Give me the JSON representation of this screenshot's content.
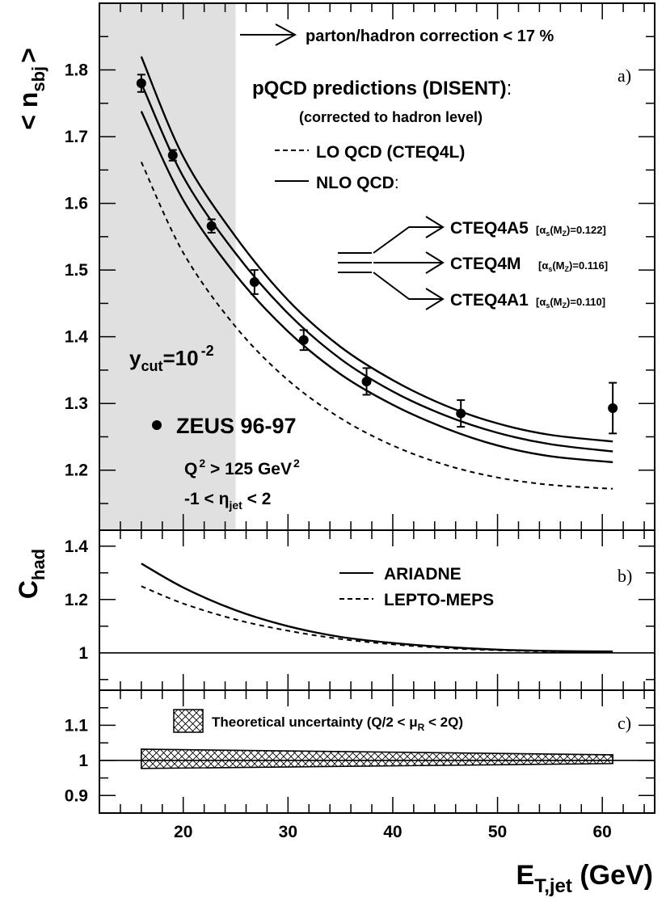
{
  "chart_data": [
    {
      "panel": "a",
      "type": "scatter",
      "tag": "a)",
      "ylabel": "< n",
      "ylabel_sub": "sbj",
      "ylabel_close": ">",
      "xlim": [
        12,
        65
      ],
      "ylim": [
        1.11,
        1.9
      ],
      "yticks": [
        1.2,
        1.3,
        1.4,
        1.5,
        1.6,
        1.7,
        1.8
      ],
      "ytick_labels": [
        "1.2",
        "1.3",
        "1.4",
        "1.5",
        "1.6",
        "1.7",
        "1.8"
      ],
      "shaded_region": {
        "x": [
          12,
          25
        ]
      },
      "series": [
        {
          "name": "ZEUS 96-97",
          "kind": "points",
          "x": [
            16,
            19,
            22.7,
            26.8,
            31.5,
            37.5,
            46.5,
            61
          ],
          "y": [
            1.78,
            1.672,
            1.566,
            1.482,
            1.395,
            1.333,
            1.285,
            1.293
          ],
          "yerr": [
            0.013,
            0.008,
            0.01,
            0.018,
            0.015,
            0.02,
            0.02,
            0.038
          ]
        },
        {
          "name": "CTEQ4A5",
          "kind": "line",
          "dash": "solid",
          "x": [
            16,
            20,
            25,
            30,
            35,
            40,
            45,
            50,
            55,
            61
          ],
          "y": [
            1.82,
            1.67,
            1.55,
            1.455,
            1.385,
            1.335,
            1.297,
            1.27,
            1.253,
            1.243
          ]
        },
        {
          "name": "CTEQ4M",
          "kind": "line",
          "dash": "solid",
          "x": [
            16,
            20,
            25,
            30,
            35,
            40,
            45,
            50,
            55,
            61
          ],
          "y": [
            1.78,
            1.64,
            1.525,
            1.435,
            1.367,
            1.318,
            1.282,
            1.256,
            1.239,
            1.228
          ]
        },
        {
          "name": "CTEQ4A1",
          "kind": "line",
          "dash": "solid",
          "x": [
            16,
            20,
            25,
            30,
            35,
            40,
            45,
            50,
            55,
            61
          ],
          "y": [
            1.738,
            1.605,
            1.493,
            1.408,
            1.344,
            1.298,
            1.263,
            1.237,
            1.221,
            1.212
          ]
        },
        {
          "name": "LO QCD (CTEQ4L)",
          "kind": "line",
          "dash": "dashed",
          "x": [
            16,
            20,
            25,
            30,
            35,
            40,
            45,
            50,
            55,
            61
          ],
          "y": [
            1.662,
            1.526,
            1.415,
            1.335,
            1.278,
            1.237,
            1.208,
            1.189,
            1.178,
            1.172
          ]
        }
      ],
      "annotations": {
        "correction": "parton/hadron correction < 17 %",
        "pqcd_title": "pQCD predictions (DISENT)",
        "pqcd_colon": ":",
        "pqcd_sub": "(corrected to hadron level)",
        "lo_label": "LO QCD (CTEQ4L)",
        "nlo_label": "NLO QCD",
        "nlo_colon": ":",
        "pdfs": [
          {
            "name": "CTEQ4A5",
            "value": "=0.122]"
          },
          {
            "name": "CTEQ4M",
            "value": "=0.116]"
          },
          {
            "name": "CTEQ4A1",
            "value": "=0.110]"
          }
        ],
        "alpha_open": "[α",
        "alpha_s": "s",
        "alpha_m": "(M",
        "alpha_z": "Z",
        "alpha_close": ")",
        "ycut_y": "y",
        "ycut_sub": "cut",
        "ycut_eq": "=10",
        "ycut_exp": "-2",
        "zeus_label": "ZEUS 96-97",
        "q2_q": "Q",
        "q2_exp": "2",
        "q2_gt": " > 125 GeV",
        "q2_exp2": "2",
        "eta_pre": "-1 < η",
        "eta_sub": "jet",
        "eta_post": " < 2"
      }
    },
    {
      "panel": "b",
      "type": "line",
      "tag": "b)",
      "ylabel": "C",
      "ylabel_sub": "had",
      "xlim": [
        12,
        65
      ],
      "ylim": [
        0.86,
        1.46
      ],
      "yticks": [
        1.0,
        1.2,
        1.4
      ],
      "ytick_labels": [
        "1",
        "1.2",
        "1.4"
      ],
      "reference_line": 1.0,
      "series": [
        {
          "name": "ARIADNE",
          "dash": "solid",
          "x": [
            16,
            20,
            25,
            30,
            35,
            40,
            45,
            50,
            55,
            61
          ],
          "y": [
            1.335,
            1.245,
            1.16,
            1.1,
            1.06,
            1.037,
            1.022,
            1.012,
            1.007,
            1.005
          ]
        },
        {
          "name": "LEPTO-MEPS",
          "dash": "dashed",
          "x": [
            16,
            20,
            25,
            30,
            35,
            40,
            45,
            50,
            55,
            61
          ],
          "y": [
            1.25,
            1.185,
            1.125,
            1.083,
            1.052,
            1.032,
            1.018,
            1.01,
            1.005,
            1.002
          ]
        }
      ]
    },
    {
      "panel": "c",
      "type": "area",
      "tag": "c)",
      "xlim": [
        12,
        65
      ],
      "ylim": [
        0.85,
        1.2
      ],
      "yticks": [
        0.9,
        1.0,
        1.1
      ],
      "ytick_labels": [
        "0.9",
        "1",
        "1.1"
      ],
      "reference_line": 1.0,
      "band": {
        "x": [
          16,
          61
        ],
        "upper": [
          1.032,
          1.016
        ],
        "lower": [
          0.977,
          0.991
        ]
      },
      "legend_text": "Theoretical uncertainty (Q/2 < μ",
      "legend_sub": "R",
      "legend_post": " < 2Q)",
      "xticks": [
        20,
        30,
        40,
        50,
        60
      ],
      "xtick_labels": [
        "20",
        "30",
        "40",
        "50",
        "60"
      ],
      "xlabel": "E",
      "xlabel_sub": "T,jet",
      "xlabel_unit": " (GeV)"
    }
  ]
}
